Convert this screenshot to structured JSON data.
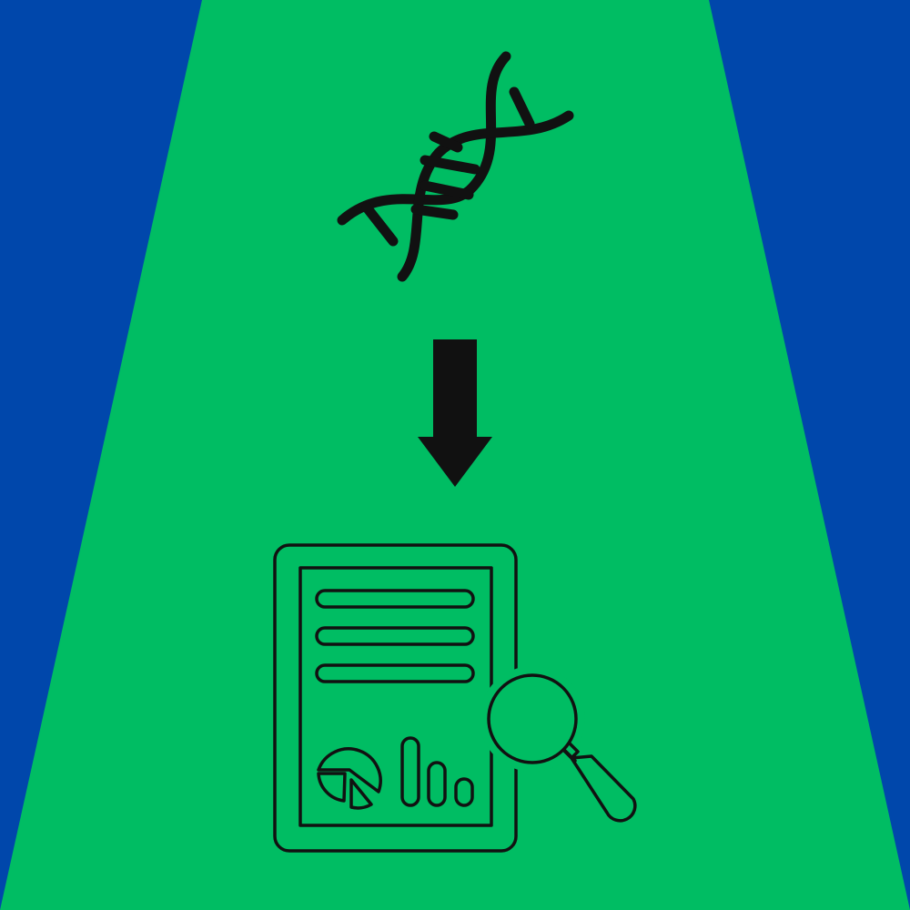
{
  "colors": {
    "background": "#0047AB",
    "beam": "#00BD63",
    "ink": "#111111"
  },
  "icons": {
    "top": "dna-icon",
    "middle": "arrow-down-icon",
    "bottom": "report-analysis-icon",
    "report_parts": [
      "document-icon",
      "pie-chart-icon",
      "bar-chart-icon",
      "magnifying-glass-icon"
    ]
  }
}
